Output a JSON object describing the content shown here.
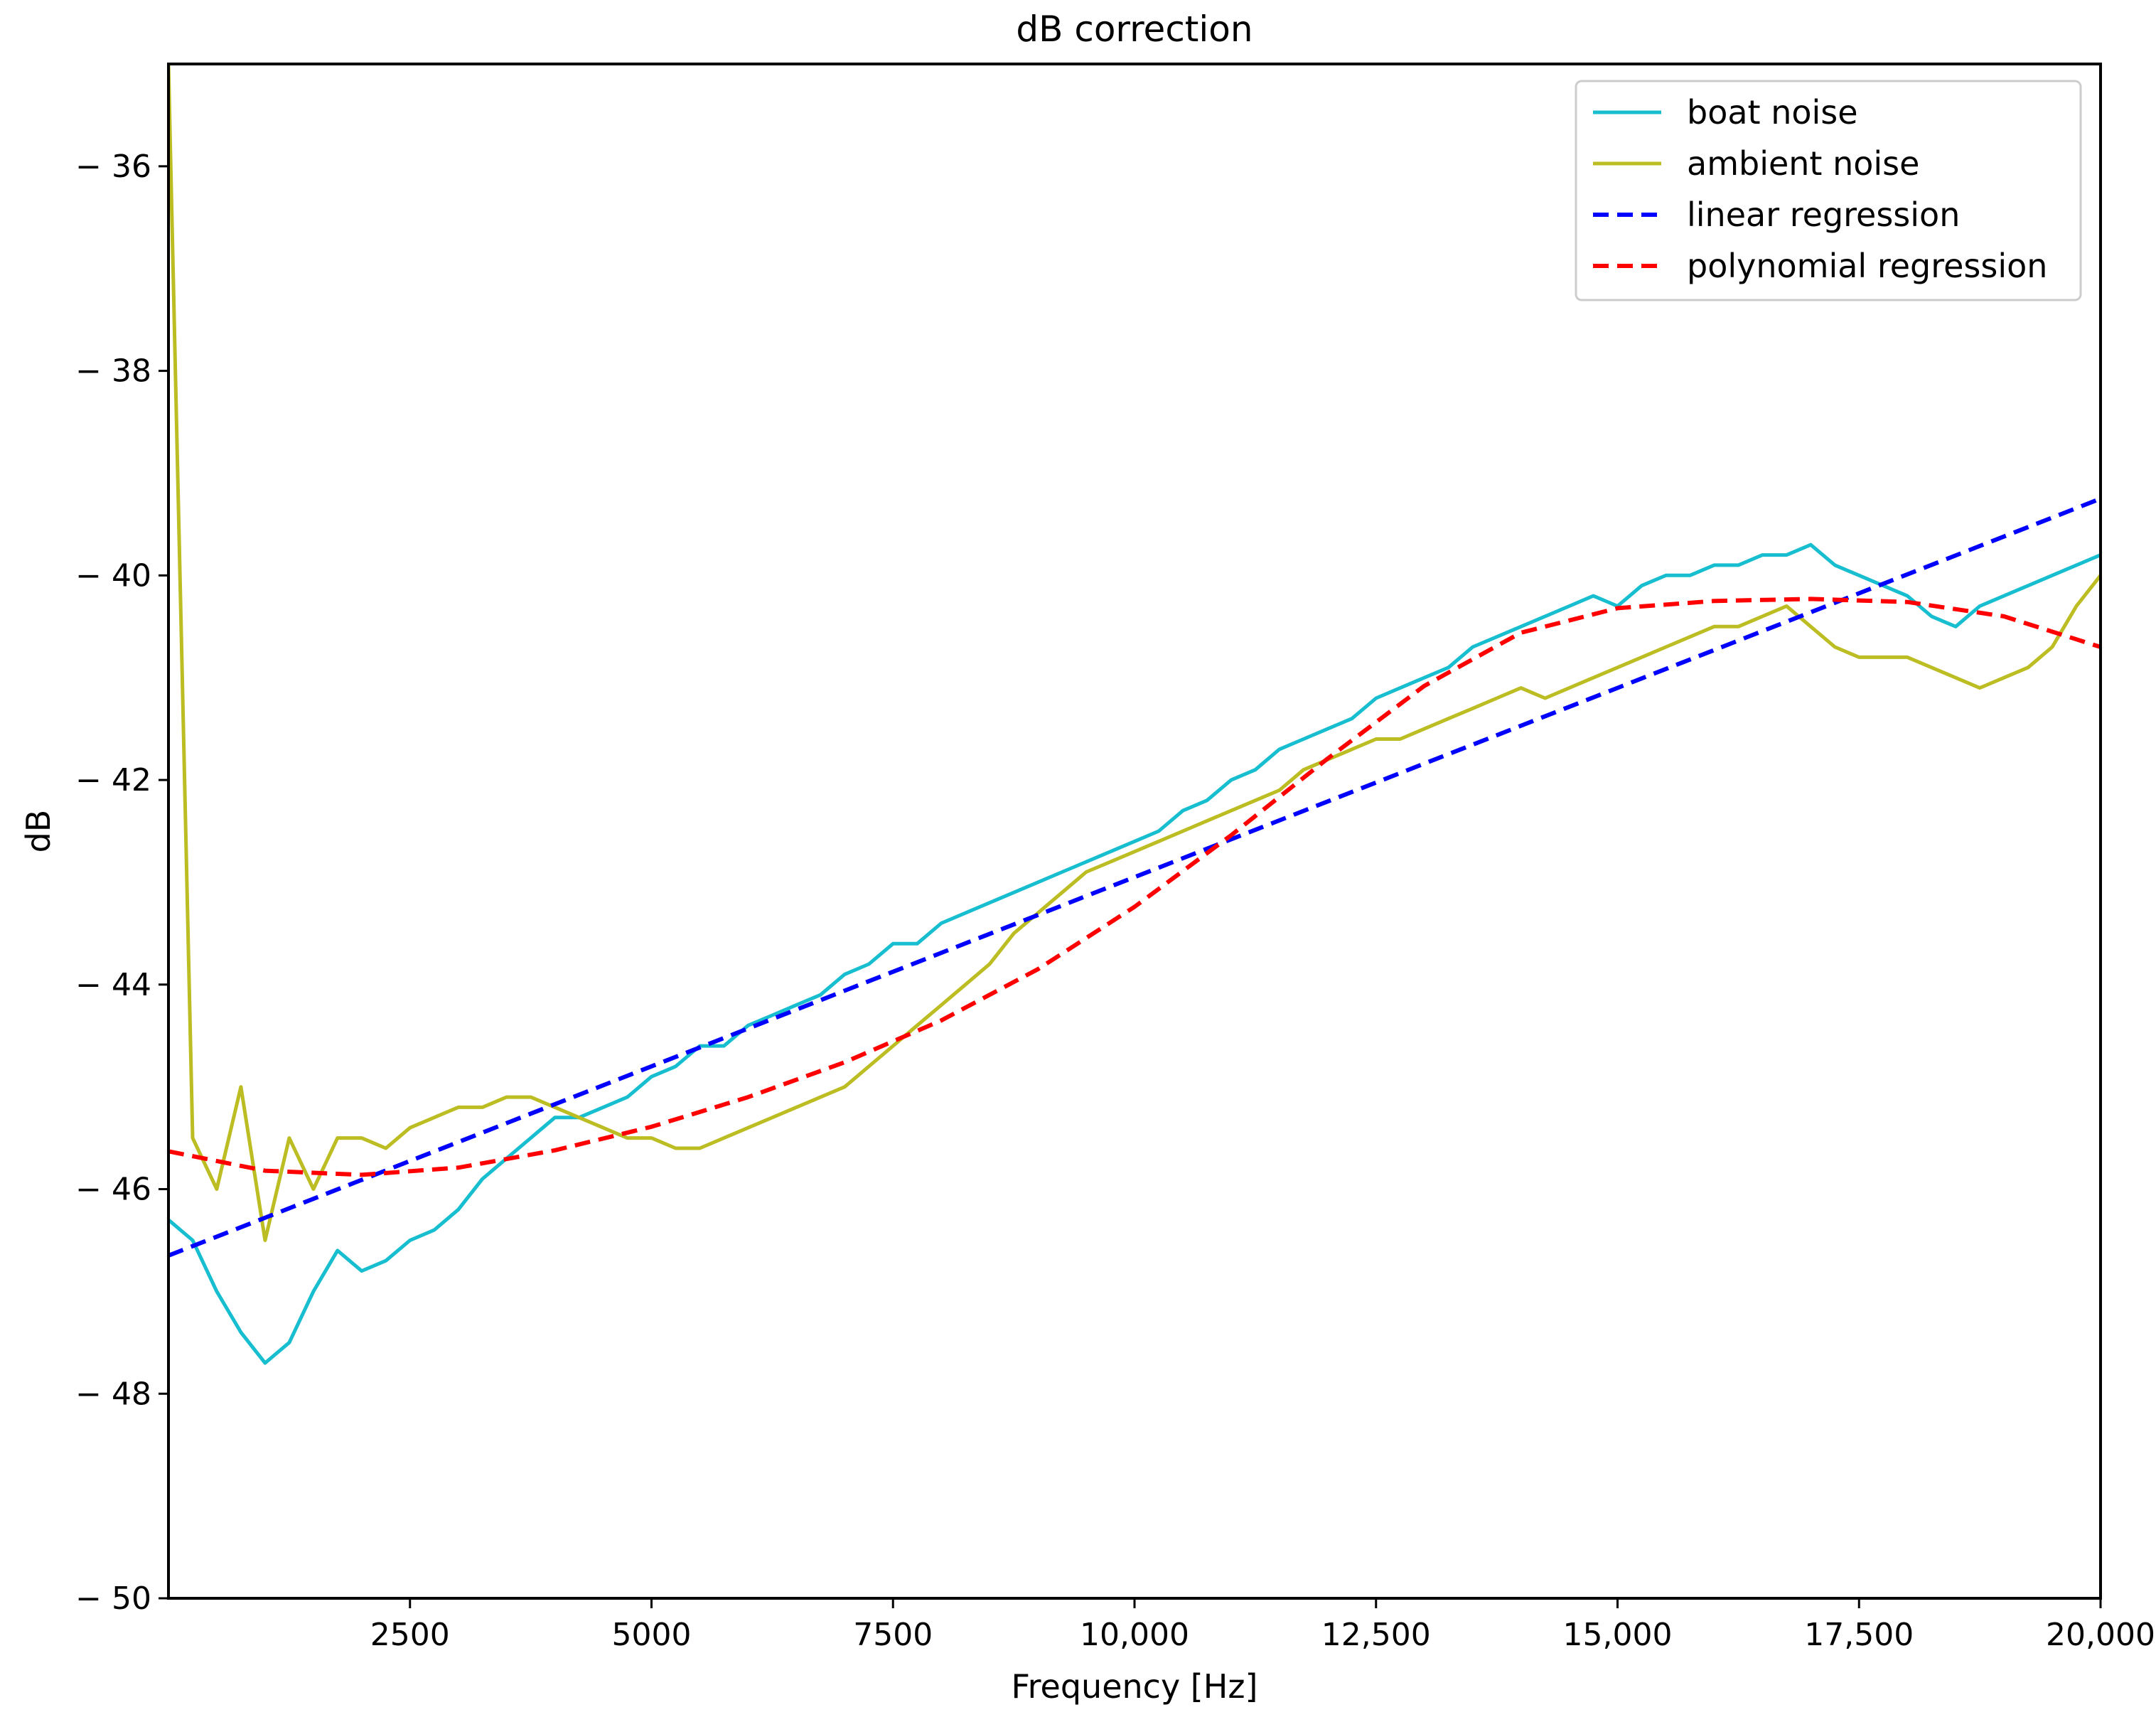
{
  "chart_data": {
    "type": "line",
    "title": "dB correction",
    "xlabel": "Frequency [Hz]",
    "ylabel": "dB",
    "xlim": [
      0,
      20000
    ],
    "ylim": [
      -50,
      -35
    ],
    "xticks": [
      2500,
      5000,
      7500,
      10000,
      12500,
      15000,
      17500,
      20000
    ],
    "xtick_labels": [
      "2500",
      "5000",
      "7500",
      "10,000",
      "12,500",
      "15,000",
      "17,500",
      "20,000"
    ],
    "yticks": [
      -36,
      -38,
      -40,
      -42,
      -44,
      -46,
      -48,
      -50
    ],
    "ytick_labels": [
      "− 36",
      "− 38",
      "− 40",
      "− 42",
      "− 44",
      "− 46",
      "− 48",
      "− 50"
    ],
    "grid": false,
    "legend_position": "top-right",
    "series": [
      {
        "name": "boat noise",
        "color": "#17becf",
        "style": "solid",
        "x": [
          0,
          250,
          500,
          750,
          1000,
          1250,
          1500,
          1750,
          2000,
          2250,
          2500,
          2750,
          3000,
          3250,
          3500,
          3750,
          4000,
          4250,
          4500,
          4750,
          5000,
          5250,
          5500,
          5750,
          6000,
          6250,
          6500,
          6750,
          7000,
          7250,
          7500,
          7750,
          8000,
          8250,
          8500,
          8750,
          9000,
          9250,
          9500,
          9750,
          10000,
          10250,
          10500,
          10750,
          11000,
          11250,
          11500,
          11750,
          12000,
          12250,
          12500,
          12750,
          13000,
          13250,
          13500,
          13750,
          14000,
          14250,
          14500,
          14750,
          15000,
          15250,
          15500,
          15750,
          16000,
          16250,
          16500,
          16750,
          17000,
          17250,
          17500,
          17750,
          18000,
          18250,
          18500,
          18750,
          19000,
          19250,
          19500,
          19750,
          20000
        ],
        "values": [
          -46.3,
          -46.5,
          -47.0,
          -47.4,
          -47.7,
          -47.5,
          -47.0,
          -46.6,
          -46.8,
          -46.7,
          -46.5,
          -46.4,
          -46.2,
          -45.9,
          -45.7,
          -45.5,
          -45.3,
          -45.3,
          -45.2,
          -45.1,
          -44.9,
          -44.8,
          -44.6,
          -44.6,
          -44.4,
          -44.3,
          -44.2,
          -44.1,
          -43.9,
          -43.8,
          -43.6,
          -43.6,
          -43.4,
          -43.3,
          -43.2,
          -43.1,
          -43.0,
          -42.9,
          -42.8,
          -42.7,
          -42.6,
          -42.5,
          -42.3,
          -42.2,
          -42.0,
          -41.9,
          -41.7,
          -41.6,
          -41.5,
          -41.4,
          -41.2,
          -41.1,
          -41.0,
          -40.9,
          -40.7,
          -40.6,
          -40.5,
          -40.4,
          -40.3,
          -40.2,
          -40.3,
          -40.1,
          -40.0,
          -40.0,
          -39.9,
          -39.9,
          -39.8,
          -39.8,
          -39.7,
          -39.9,
          -40.0,
          -40.1,
          -40.2,
          -40.4,
          -40.5,
          -40.3,
          -40.2,
          -40.1,
          -40.0,
          -39.9,
          -39.8
        ]
      },
      {
        "name": "ambient noise",
        "color": "#bcbd22",
        "style": "solid",
        "x": [
          0,
          250,
          500,
          750,
          1000,
          1250,
          1500,
          1750,
          2000,
          2250,
          2500,
          2750,
          3000,
          3250,
          3500,
          3750,
          4000,
          4250,
          4500,
          4750,
          5000,
          5250,
          5500,
          5750,
          6000,
          6250,
          6500,
          6750,
          7000,
          7250,
          7500,
          7750,
          8000,
          8250,
          8500,
          8750,
          9000,
          9250,
          9500,
          9750,
          10000,
          10250,
          10500,
          10750,
          11000,
          11250,
          11500,
          11750,
          12000,
          12250,
          12500,
          12750,
          13000,
          13250,
          13500,
          13750,
          14000,
          14250,
          14500,
          14750,
          15000,
          15250,
          15500,
          15750,
          16000,
          16250,
          16500,
          16750,
          17000,
          17250,
          17500,
          17750,
          18000,
          18250,
          18500,
          18750,
          19000,
          19250,
          19500,
          19750,
          20000
        ],
        "values": [
          -35.0,
          -45.5,
          -46.0,
          -45.0,
          -46.5,
          -45.5,
          -46.0,
          -45.5,
          -45.5,
          -45.6,
          -45.4,
          -45.3,
          -45.2,
          -45.2,
          -45.1,
          -45.1,
          -45.2,
          -45.3,
          -45.4,
          -45.5,
          -45.5,
          -45.6,
          -45.6,
          -45.5,
          -45.4,
          -45.3,
          -45.2,
          -45.1,
          -45.0,
          -44.8,
          -44.6,
          -44.4,
          -44.2,
          -44.0,
          -43.8,
          -43.5,
          -43.3,
          -43.1,
          -42.9,
          -42.8,
          -42.7,
          -42.6,
          -42.5,
          -42.4,
          -42.3,
          -42.2,
          -42.1,
          -41.9,
          -41.8,
          -41.7,
          -41.6,
          -41.6,
          -41.5,
          -41.4,
          -41.3,
          -41.2,
          -41.1,
          -41.2,
          -41.1,
          -41.0,
          -40.9,
          -40.8,
          -40.7,
          -40.6,
          -40.5,
          -40.5,
          -40.4,
          -40.3,
          -40.5,
          -40.7,
          -40.8,
          -40.8,
          -40.8,
          -40.9,
          -41.0,
          -41.1,
          -41.0,
          -40.9,
          -40.7,
          -40.3,
          -40.0
        ]
      },
      {
        "name": "linear regression",
        "color": "#0000ff",
        "style": "dashed",
        "x": [
          0,
          20000
        ],
        "values": [
          -46.65,
          -39.25
        ]
      },
      {
        "name": "polynomial regression",
        "color": "#ff0000",
        "style": "dashed",
        "x": [
          0,
          1000,
          2000,
          3000,
          4000,
          5000,
          6000,
          7000,
          8000,
          9000,
          10000,
          11000,
          12000,
          13000,
          14000,
          15000,
          16000,
          17000,
          18000,
          19000,
          20000
        ],
        "values": [
          -45.63,
          -45.82,
          -45.86,
          -45.79,
          -45.62,
          -45.39,
          -45.1,
          -44.76,
          -44.35,
          -43.85,
          -43.24,
          -42.54,
          -41.79,
          -41.08,
          -40.56,
          -40.32,
          -40.25,
          -40.23,
          -40.26,
          -40.4,
          -40.7
        ]
      }
    ]
  }
}
